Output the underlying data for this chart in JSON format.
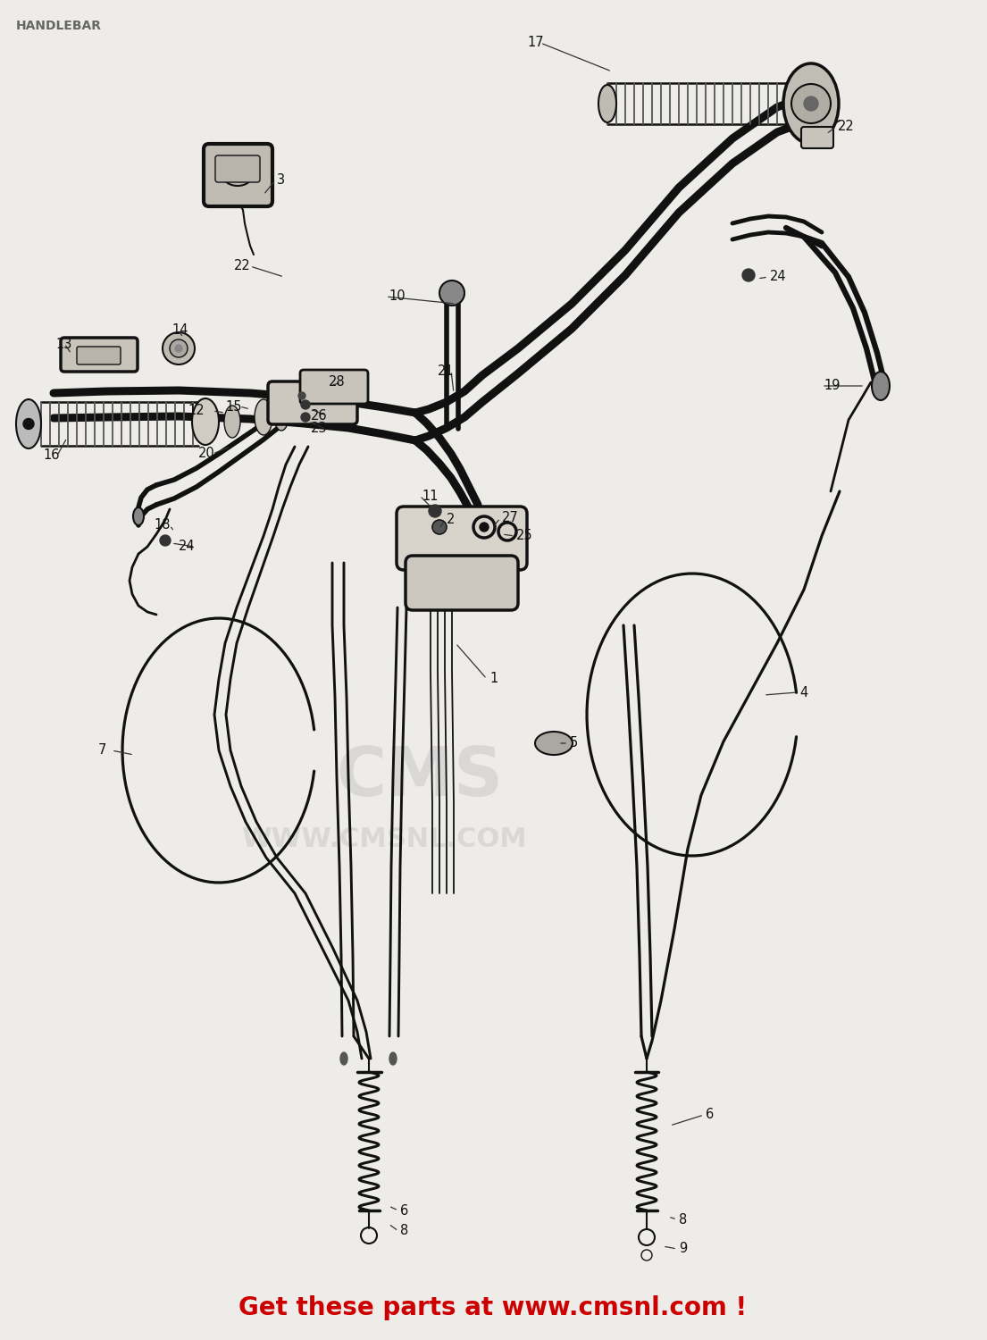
{
  "title": "HANDLEBAR",
  "title_color": "#666666",
  "title_fontsize": 10,
  "footer_text": "Get these parts at www.cmsnl.com !",
  "footer_color": "#cc0000",
  "footer_fontsize": 20,
  "watermark_lines": [
    "CMS",
    "WWW.CMSNL.COM"
  ],
  "watermark_color": "#cccccc",
  "bg_color": "#eeece8",
  "fig_width": 11.05,
  "fig_height": 15.0
}
